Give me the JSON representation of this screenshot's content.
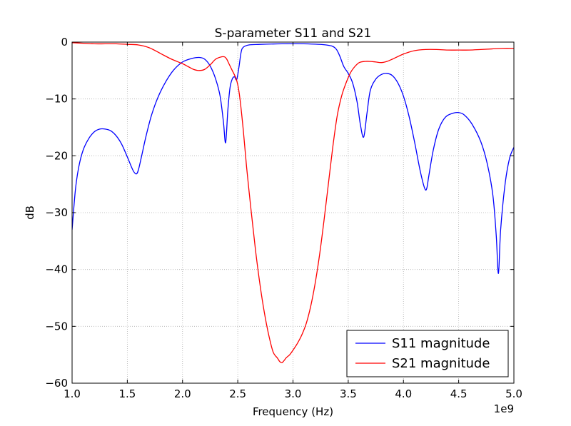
{
  "chart_data": {
    "type": "line",
    "title": "S-parameter S11 and S21",
    "xlabel": "Frequency (Hz)",
    "ylabel": "dB",
    "x_offset_label": "1e9",
    "xlim": [
      1.0,
      5.0
    ],
    "ylim": [
      -60,
      0
    ],
    "x_ticks": [
      1.0,
      1.5,
      2.0,
      2.5,
      3.0,
      3.5,
      4.0,
      4.5,
      5.0
    ],
    "x_tick_labels": [
      "1.0",
      "1.5",
      "2.0",
      "2.5",
      "3.0",
      "3.5",
      "4.0",
      "4.5",
      "5.0"
    ],
    "y_ticks": [
      0,
      -10,
      -20,
      -30,
      -40,
      -50,
      -60
    ],
    "y_tick_labels": [
      "0",
      "−10",
      "−20",
      "−30",
      "−40",
      "−50",
      "−60"
    ],
    "grid": true,
    "legend_position": "bottom-right",
    "series": [
      {
        "name": "S11 magnitude",
        "color": "#0000ff",
        "x": [
          1.0,
          1.03,
          1.06,
          1.1,
          1.15,
          1.2,
          1.25,
          1.3,
          1.35,
          1.4,
          1.45,
          1.5,
          1.55,
          1.58,
          1.6,
          1.63,
          1.67,
          1.72,
          1.78,
          1.85,
          1.92,
          2.0,
          2.08,
          2.15,
          2.2,
          2.25,
          2.3,
          2.34,
          2.37,
          2.39,
          2.41,
          2.43,
          2.45,
          2.47,
          2.49,
          2.51,
          2.53,
          2.55,
          2.6,
          2.7,
          2.9,
          3.1,
          3.3,
          3.38,
          3.42,
          3.46,
          3.5,
          3.54,
          3.58,
          3.61,
          3.64,
          3.67,
          3.7,
          3.75,
          3.8,
          3.85,
          3.9,
          3.95,
          4.0,
          4.05,
          4.1,
          4.15,
          4.19,
          4.21,
          4.23,
          4.27,
          4.32,
          4.38,
          4.45,
          4.5,
          4.55,
          4.62,
          4.7,
          4.76,
          4.81,
          4.84,
          4.86,
          4.88,
          4.92,
          4.96,
          5.0
        ],
        "values": [
          -33,
          -26,
          -22,
          -19,
          -17,
          -15.8,
          -15.3,
          -15.3,
          -15.6,
          -16.5,
          -18,
          -20.2,
          -22.5,
          -23.2,
          -22.5,
          -20,
          -16.5,
          -12.8,
          -9.6,
          -6.9,
          -4.9,
          -3.5,
          -2.9,
          -2.7,
          -3.0,
          -4.2,
          -6.5,
          -9.5,
          -14,
          -17.7,
          -12,
          -8,
          -6.5,
          -6.1,
          -6.6,
          -4.5,
          -1.8,
          -0.9,
          -0.5,
          -0.4,
          -0.3,
          -0.3,
          -0.5,
          -1.0,
          -2.3,
          -4.3,
          -5.5,
          -7.2,
          -10.5,
          -14.5,
          -16.7,
          -12.5,
          -8.5,
          -6.5,
          -5.7,
          -5.5,
          -5.9,
          -7.2,
          -9.5,
          -13,
          -17.5,
          -22.5,
          -25.6,
          -25.8,
          -23.5,
          -19,
          -15.3,
          -13.2,
          -12.5,
          -12.4,
          -12.8,
          -14.4,
          -17.5,
          -21.5,
          -27,
          -34,
          -40.7,
          -33,
          -25,
          -20.5,
          -18.5
        ]
      },
      {
        "name": "S21 magnitude",
        "color": "#ff0000",
        "x": [
          1.0,
          1.1,
          1.2,
          1.3,
          1.4,
          1.5,
          1.6,
          1.7,
          1.8,
          1.9,
          2.0,
          2.05,
          2.1,
          2.15,
          2.2,
          2.25,
          2.3,
          2.35,
          2.38,
          2.4,
          2.42,
          2.45,
          2.48,
          2.5,
          2.52,
          2.55,
          2.58,
          2.62,
          2.66,
          2.7,
          2.74,
          2.78,
          2.82,
          2.86,
          2.88,
          2.9,
          2.92,
          2.94,
          2.97,
          3.0,
          3.04,
          3.08,
          3.12,
          3.16,
          3.2,
          3.24,
          3.28,
          3.32,
          3.36,
          3.4,
          3.44,
          3.48,
          3.52,
          3.56,
          3.6,
          3.65,
          3.7,
          3.75,
          3.8,
          3.85,
          3.9,
          4.0,
          4.1,
          4.2,
          4.3,
          4.4,
          4.5,
          4.6,
          4.7,
          4.8,
          4.9,
          5.0
        ],
        "values": [
          -0.1,
          -0.2,
          -0.3,
          -0.3,
          -0.3,
          -0.4,
          -0.5,
          -1.0,
          -2.0,
          -3.0,
          -3.8,
          -4.3,
          -4.8,
          -5.0,
          -4.8,
          -4.0,
          -3.0,
          -2.6,
          -2.6,
          -3.0,
          -3.8,
          -5.0,
          -6.2,
          -7.5,
          -10,
          -15.5,
          -22,
          -29.5,
          -36.5,
          -42.5,
          -47.5,
          -51.5,
          -54.5,
          -55.6,
          -56.2,
          -56.4,
          -56.0,
          -55.5,
          -55.0,
          -54.2,
          -53.0,
          -51.5,
          -49.5,
          -46.5,
          -42.5,
          -37.5,
          -31.5,
          -25.0,
          -18.5,
          -13.0,
          -9.5,
          -7.2,
          -5.4,
          -4.3,
          -3.6,
          -3.4,
          -3.4,
          -3.5,
          -3.6,
          -3.4,
          -3.0,
          -2.1,
          -1.5,
          -1.3,
          -1.3,
          -1.4,
          -1.4,
          -1.4,
          -1.3,
          -1.2,
          -1.1,
          -1.1
        ]
      }
    ]
  }
}
